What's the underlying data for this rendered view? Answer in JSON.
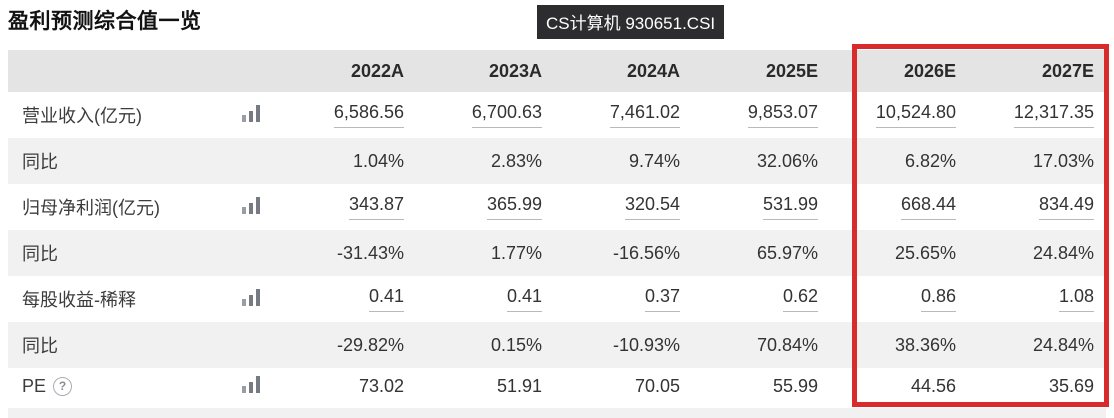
{
  "header": {
    "title": "盈利预测综合值一览",
    "badge": "CS计算机 930651.CSI"
  },
  "table": {
    "columns": [
      "",
      "2022A",
      "2023A",
      "2024A",
      "2025E",
      "2026E",
      "2027E"
    ],
    "rows": [
      {
        "label": "营业收入(亿元)",
        "icon": "bar-chart",
        "linked": true,
        "values": [
          "6,586.56",
          "6,700.63",
          "7,461.02",
          "9,853.07",
          "10,524.80",
          "12,317.35"
        ]
      },
      {
        "label": "同比",
        "linked": false,
        "values": [
          "1.04%",
          "2.83%",
          "9.74%",
          "32.06%",
          "6.82%",
          "17.03%"
        ]
      },
      {
        "label": "归母净利润(亿元)",
        "icon": "bar-chart",
        "linked": true,
        "values": [
          "343.87",
          "365.99",
          "320.54",
          "531.99",
          "668.44",
          "834.49"
        ]
      },
      {
        "label": "同比",
        "linked": false,
        "values": [
          "-31.43%",
          "1.77%",
          "-16.56%",
          "65.97%",
          "25.65%",
          "24.84%"
        ]
      },
      {
        "label": "每股收益-稀释",
        "icon": "bar-chart",
        "linked": true,
        "values": [
          "0.41",
          "0.41",
          "0.37",
          "0.62",
          "0.86",
          "1.08"
        ]
      },
      {
        "label": "同比",
        "linked": false,
        "values": [
          "-29.82%",
          "0.15%",
          "-10.93%",
          "70.84%",
          "38.36%",
          "24.84%"
        ]
      },
      {
        "label": "PE",
        "icon": "bar-chart",
        "help": true,
        "linked": false,
        "values": [
          "73.02",
          "51.91",
          "70.05",
          "55.99",
          "44.56",
          "35.69"
        ]
      }
    ]
  },
  "icons": {
    "bar_chart_name": "bar-chart-icon",
    "help_glyph": "?"
  },
  "highlight": {
    "columns": [
      "2026E",
      "2027E"
    ],
    "color": "#d92b2b"
  },
  "colors": {
    "badge_bg": "#2d2d30",
    "badge_text": "#ffffff",
    "header_row_bg": "#e4e4e5",
    "alt_row_bg": "#f1f1f2",
    "value_text": "#333333",
    "link_underline": "#b9b9b9",
    "accent_red": "#d92b2b"
  }
}
